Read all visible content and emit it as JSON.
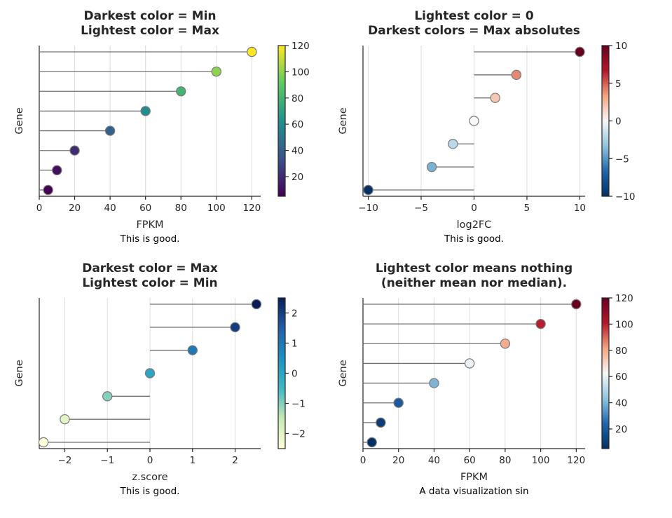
{
  "chart_data": [
    {
      "type": "lollipop",
      "title_lines": [
        "Darkest color = Min",
        "Lightest color = Max"
      ],
      "xlabel": "FPKM",
      "ylabel": "Gene",
      "caption": "This is good.",
      "x": [
        5,
        10,
        20,
        40,
        60,
        80,
        100,
        120
      ],
      "xlim": [
        0,
        125
      ],
      "xticks": [
        0,
        20,
        40,
        60,
        80,
        100,
        120
      ],
      "stem_base": 0,
      "colormap": "viridis",
      "colorbar": {
        "min": 5,
        "max": 120,
        "ticks": [
          20,
          40,
          60,
          80,
          100,
          120
        ]
      },
      "grid": "vertical",
      "colors": {
        "viridis": [
          "#440154",
          "#3b528b",
          "#21918c",
          "#5ec962",
          "#fde725"
        ]
      }
    },
    {
      "type": "lollipop",
      "title_lines": [
        "Lightest color = 0",
        "Darkest colors = Max absolutes"
      ],
      "xlabel": "log2FC",
      "ylabel": "Gene",
      "caption": "This is good.",
      "x": [
        -10,
        -4,
        -2,
        0,
        2,
        4,
        10
      ],
      "xlim": [
        -10.5,
        10.5
      ],
      "xticks": [
        -10,
        -5,
        0,
        5,
        10
      ],
      "stem_base": 0,
      "colormap": "RdBu_r",
      "colorbar": {
        "min": -10,
        "max": 10,
        "ticks": [
          -10,
          -5,
          0,
          5,
          10
        ]
      },
      "grid": "vertical",
      "colors": {
        "RdBu_r": [
          "#053061",
          "#2166ac",
          "#92c5de",
          "#f7f7f7",
          "#f4a582",
          "#b2182b",
          "#67001f"
        ]
      }
    },
    {
      "type": "lollipop",
      "title_lines": [
        "Darkest color = Max",
        "Lightest color = Min"
      ],
      "xlabel": "z.score",
      "ylabel": "Gene",
      "caption": "This is good.",
      "x": [
        -2.5,
        -2,
        -1,
        0,
        1,
        2,
        2.5
      ],
      "xlim": [
        -2.6,
        2.6
      ],
      "xticks": [
        -2,
        -1,
        0,
        1,
        2
      ],
      "stem_base": 0,
      "colormap": "YlGnBu",
      "colorbar": {
        "min": -2.5,
        "max": 2.5,
        "ticks": [
          -2,
          -1,
          0,
          1,
          2
        ]
      },
      "grid": "vertical",
      "colors": {
        "YlGnBu": [
          "#ffffd9",
          "#c7e9b4",
          "#41b6c4",
          "#1d91c0",
          "#225ea8",
          "#081d58"
        ]
      }
    },
    {
      "type": "lollipop",
      "title_lines": [
        "Lightest color means nothing",
        "(neither mean nor median)."
      ],
      "xlabel": "FPKM",
      "ylabel": "Gene",
      "caption": "A data visualization sin",
      "x": [
        5,
        10,
        20,
        40,
        60,
        80,
        100,
        120
      ],
      "xlim": [
        0,
        125
      ],
      "xticks": [
        0,
        20,
        40,
        60,
        80,
        100,
        120
      ],
      "stem_base": 0,
      "colormap": "RdBu_r",
      "colorbar": {
        "min": 5,
        "max": 120,
        "ticks": [
          20,
          40,
          60,
          80,
          100,
          120
        ]
      },
      "grid": "vertical",
      "colors": {
        "RdBu_r": [
          "#053061",
          "#2166ac",
          "#92c5de",
          "#f7f7f7",
          "#f4a582",
          "#b2182b",
          "#67001f"
        ]
      }
    }
  ]
}
